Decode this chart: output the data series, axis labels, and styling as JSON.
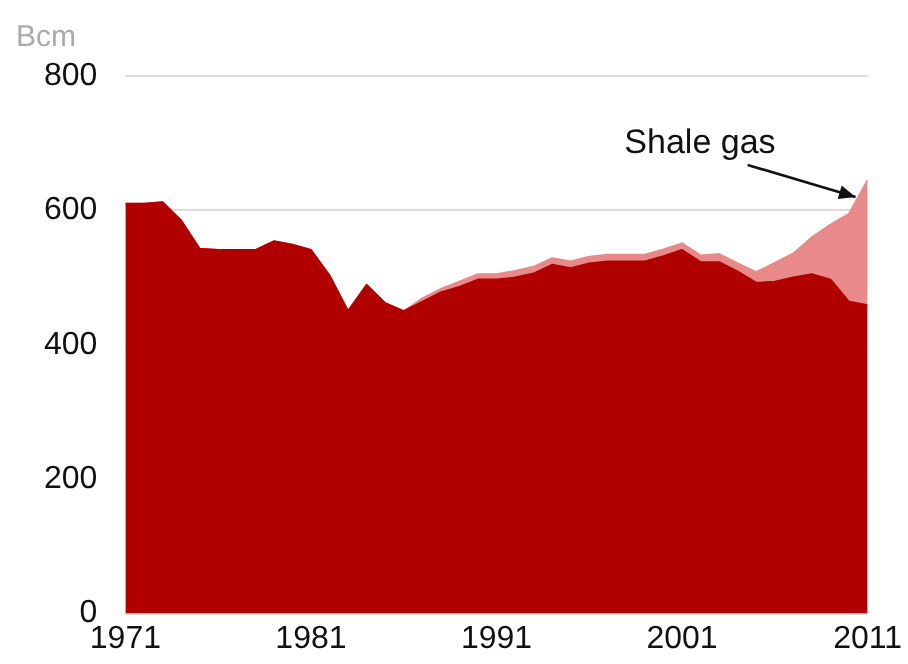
{
  "chart_data": {
    "type": "area",
    "stacked": true,
    "ylabel": "Bcm",
    "x": [
      1971,
      1972,
      1973,
      1974,
      1975,
      1976,
      1977,
      1978,
      1979,
      1980,
      1981,
      1982,
      1983,
      1984,
      1985,
      1986,
      1987,
      1988,
      1989,
      1990,
      1991,
      1992,
      1993,
      1994,
      1995,
      1996,
      1997,
      1998,
      1999,
      2000,
      2001,
      2002,
      2003,
      2004,
      2005,
      2006,
      2007,
      2008,
      2009,
      2010,
      2011
    ],
    "series": [
      {
        "color": "#b00000",
        "values": [
          610,
          610,
          612,
          585,
          543,
          541,
          541,
          541,
          554,
          549,
          541,
          503,
          450,
          489,
          462,
          450,
          464,
          478,
          486,
          497,
          497,
          500,
          506,
          519,
          514,
          521,
          524,
          524,
          524,
          532,
          541,
          523,
          523,
          509,
          492,
          494,
          500,
          505,
          497,
          464,
          459
        ]
      },
      {
        "color": "#e88a8a",
        "values": [
          0,
          0,
          0,
          0,
          0,
          0,
          0,
          0,
          0,
          0,
          0,
          0,
          0,
          0,
          0,
          0,
          5,
          5,
          8,
          8,
          8,
          10,
          10,
          10,
          10,
          10,
          10,
          10,
          10,
          10,
          10,
          10,
          12,
          12,
          16,
          28,
          36,
          55,
          82,
          131,
          186
        ]
      }
    ],
    "xlim": [
      1971,
      2011
    ],
    "xticks": [
      1971,
      1981,
      1991,
      2001,
      2011
    ],
    "ylim": [
      0,
      800
    ],
    "yticks": [
      0,
      200,
      400,
      600,
      800
    ],
    "grid": "y",
    "legend": false,
    "annotations": [
      {
        "text": "Shale gas",
        "x": 2011,
        "y": 620
      }
    ]
  }
}
